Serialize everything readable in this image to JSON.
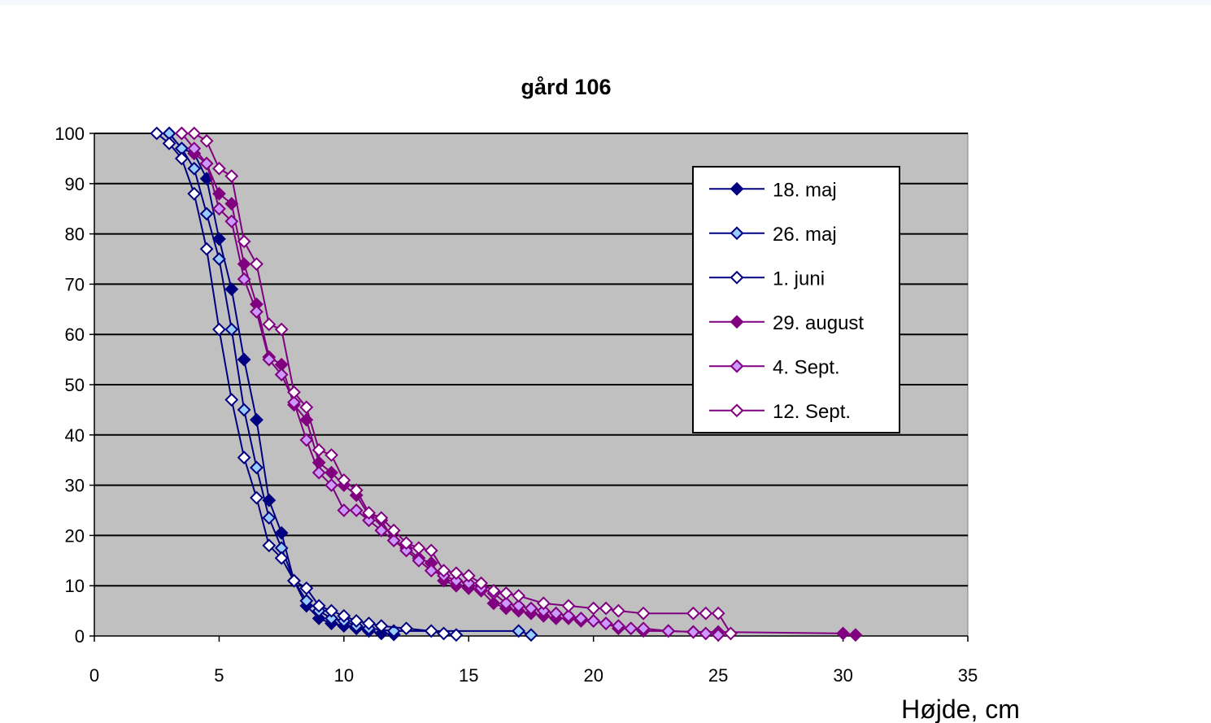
{
  "chart_data": {
    "type": "line",
    "title": "gård 106",
    "xlabel": "Højde, cm",
    "ylabel": "",
    "xlim": [
      0,
      35
    ],
    "ylim": [
      0,
      100
    ],
    "xticks": [
      0,
      5,
      10,
      15,
      20,
      25,
      30,
      35
    ],
    "yticks": [
      0,
      10,
      20,
      30,
      40,
      50,
      60,
      70,
      80,
      90,
      100
    ],
    "grid": "horizontal",
    "plot_background": "#c0c0c0",
    "legend_position": "top-right",
    "series": [
      {
        "name": "18. maj",
        "color": "#000080",
        "marker": "diamond",
        "fill": "#000080",
        "x": [
          3.0,
          3.5,
          4.0,
          4.5,
          5.0,
          5.5,
          6.0,
          6.5,
          7.0,
          7.5,
          8.0,
          8.5,
          9.0,
          9.5,
          10.0,
          10.5,
          11.0,
          11.5,
          12.0
        ],
        "y": [
          100,
          97,
          96,
          91,
          79,
          69,
          55,
          43,
          27,
          20.5,
          11,
          6,
          3.5,
          2.5,
          2,
          1.5,
          1,
          0.5,
          0.3
        ]
      },
      {
        "name": "26. maj",
        "color": "#000080",
        "marker": "diamond",
        "fill": "#99ccff",
        "x": [
          3.0,
          3.5,
          4.0,
          4.5,
          5.0,
          5.5,
          6.0,
          6.5,
          7.0,
          7.5,
          8.0,
          8.5,
          9.0,
          9.5,
          10.0,
          10.5,
          11.0,
          12.0,
          17.0,
          17.5
        ],
        "y": [
          100,
          97,
          93,
          84,
          75,
          61,
          45,
          33.5,
          23.5,
          17.5,
          11,
          7,
          5,
          3.5,
          3,
          2,
          1.5,
          1,
          1,
          0.2
        ]
      },
      {
        "name": "1. juni",
        "color": "#000080",
        "marker": "diamond",
        "fill": "#ffffff",
        "x": [
          2.5,
          3.0,
          3.5,
          4.0,
          4.5,
          5.0,
          5.5,
          6.0,
          6.5,
          7.0,
          7.5,
          8.0,
          8.5,
          9.0,
          9.5,
          10.0,
          10.5,
          11.0,
          11.5,
          12.5,
          13.5,
          14.0,
          14.5
        ],
        "y": [
          100,
          98,
          95,
          88,
          77,
          61,
          47,
          35.5,
          27.5,
          18,
          15.5,
          11,
          9.5,
          6,
          5,
          4,
          3,
          2.5,
          2,
          1.5,
          1,
          0.5,
          0.2
        ]
      },
      {
        "name": "29. august",
        "color": "#800080",
        "marker": "diamond",
        "fill": "#800080",
        "x": [
          4.0,
          4.5,
          5.0,
          5.5,
          6.0,
          6.5,
          7.0,
          7.5,
          8.0,
          8.5,
          9.0,
          9.5,
          10.0,
          10.5,
          11.0,
          11.5,
          12.0,
          12.5,
          13.0,
          13.5,
          14.0,
          14.5,
          15.0,
          15.5,
          16.0,
          16.5,
          17.0,
          17.5,
          18.0,
          18.5,
          19.0,
          19.5,
          20.0,
          20.5,
          21.0,
          21.5,
          22.0,
          23.0,
          24.0,
          25.0,
          30.0,
          30.5
        ],
        "y": [
          96,
          94,
          88,
          86,
          74,
          66,
          55.5,
          54,
          46,
          43,
          34.5,
          32.5,
          30,
          28,
          24,
          23,
          19,
          17.5,
          15.5,
          14.5,
          11,
          10,
          9.5,
          9,
          6.5,
          5.5,
          5,
          4.5,
          4,
          3.5,
          3.5,
          3,
          3,
          2.5,
          1.5,
          1.5,
          1,
          1,
          0.8,
          0.8,
          0.5,
          0.2
        ]
      },
      {
        "name": "4. Sept.",
        "color": "#800080",
        "marker": "diamond",
        "fill": "#cc99ff",
        "x": [
          3.5,
          4.0,
          4.5,
          5.0,
          5.5,
          6.0,
          6.5,
          7.0,
          7.5,
          8.0,
          8.5,
          9.0,
          9.5,
          10.0,
          10.5,
          11.0,
          11.5,
          12.0,
          12.5,
          13.0,
          13.5,
          14.0,
          14.5,
          15.0,
          15.5,
          16.0,
          16.5,
          17.0,
          17.5,
          18.0,
          18.5,
          19.0,
          19.5,
          20.0,
          20.5,
          21.0,
          21.5,
          22.0,
          23.0,
          24.0,
          24.5,
          25.0
        ],
        "y": [
          100,
          97,
          94,
          85,
          82.5,
          71,
          64.5,
          55,
          52,
          46.5,
          39,
          32.5,
          30,
          25,
          25,
          23,
          21,
          19,
          17,
          15,
          13,
          12,
          11,
          10.5,
          9.5,
          8.5,
          6.5,
          6,
          5.5,
          5,
          4.5,
          4,
          3.5,
          3,
          2.5,
          2,
          1.5,
          1.5,
          1.0,
          0.8,
          0.5,
          0.2
        ]
      },
      {
        "name": "12. Sept.",
        "color": "#800080",
        "marker": "diamond",
        "fill": "#ffffff",
        "x": [
          3.5,
          4.0,
          4.5,
          5.0,
          5.5,
          6.0,
          6.5,
          7.0,
          7.5,
          8.0,
          8.5,
          9.0,
          9.5,
          10.0,
          10.5,
          11.0,
          11.5,
          12.0,
          12.5,
          13.0,
          13.5,
          14.0,
          14.5,
          15.0,
          15.5,
          16.0,
          16.5,
          17.0,
          18.0,
          19.0,
          20.0,
          20.5,
          21.0,
          22.0,
          24.0,
          24.5,
          25.0,
          25.5
        ],
        "y": [
          100,
          100,
          98.5,
          93,
          91.5,
          78.5,
          74,
          62,
          61,
          48.5,
          45.5,
          37,
          36,
          31,
          29,
          24.5,
          23.5,
          21,
          18.5,
          17.5,
          17,
          13,
          12.5,
          12,
          10.5,
          9,
          8.5,
          8,
          6.5,
          6,
          5.5,
          5.5,
          5,
          4.5,
          4.5,
          4.5,
          4.5,
          0.5
        ]
      }
    ]
  }
}
